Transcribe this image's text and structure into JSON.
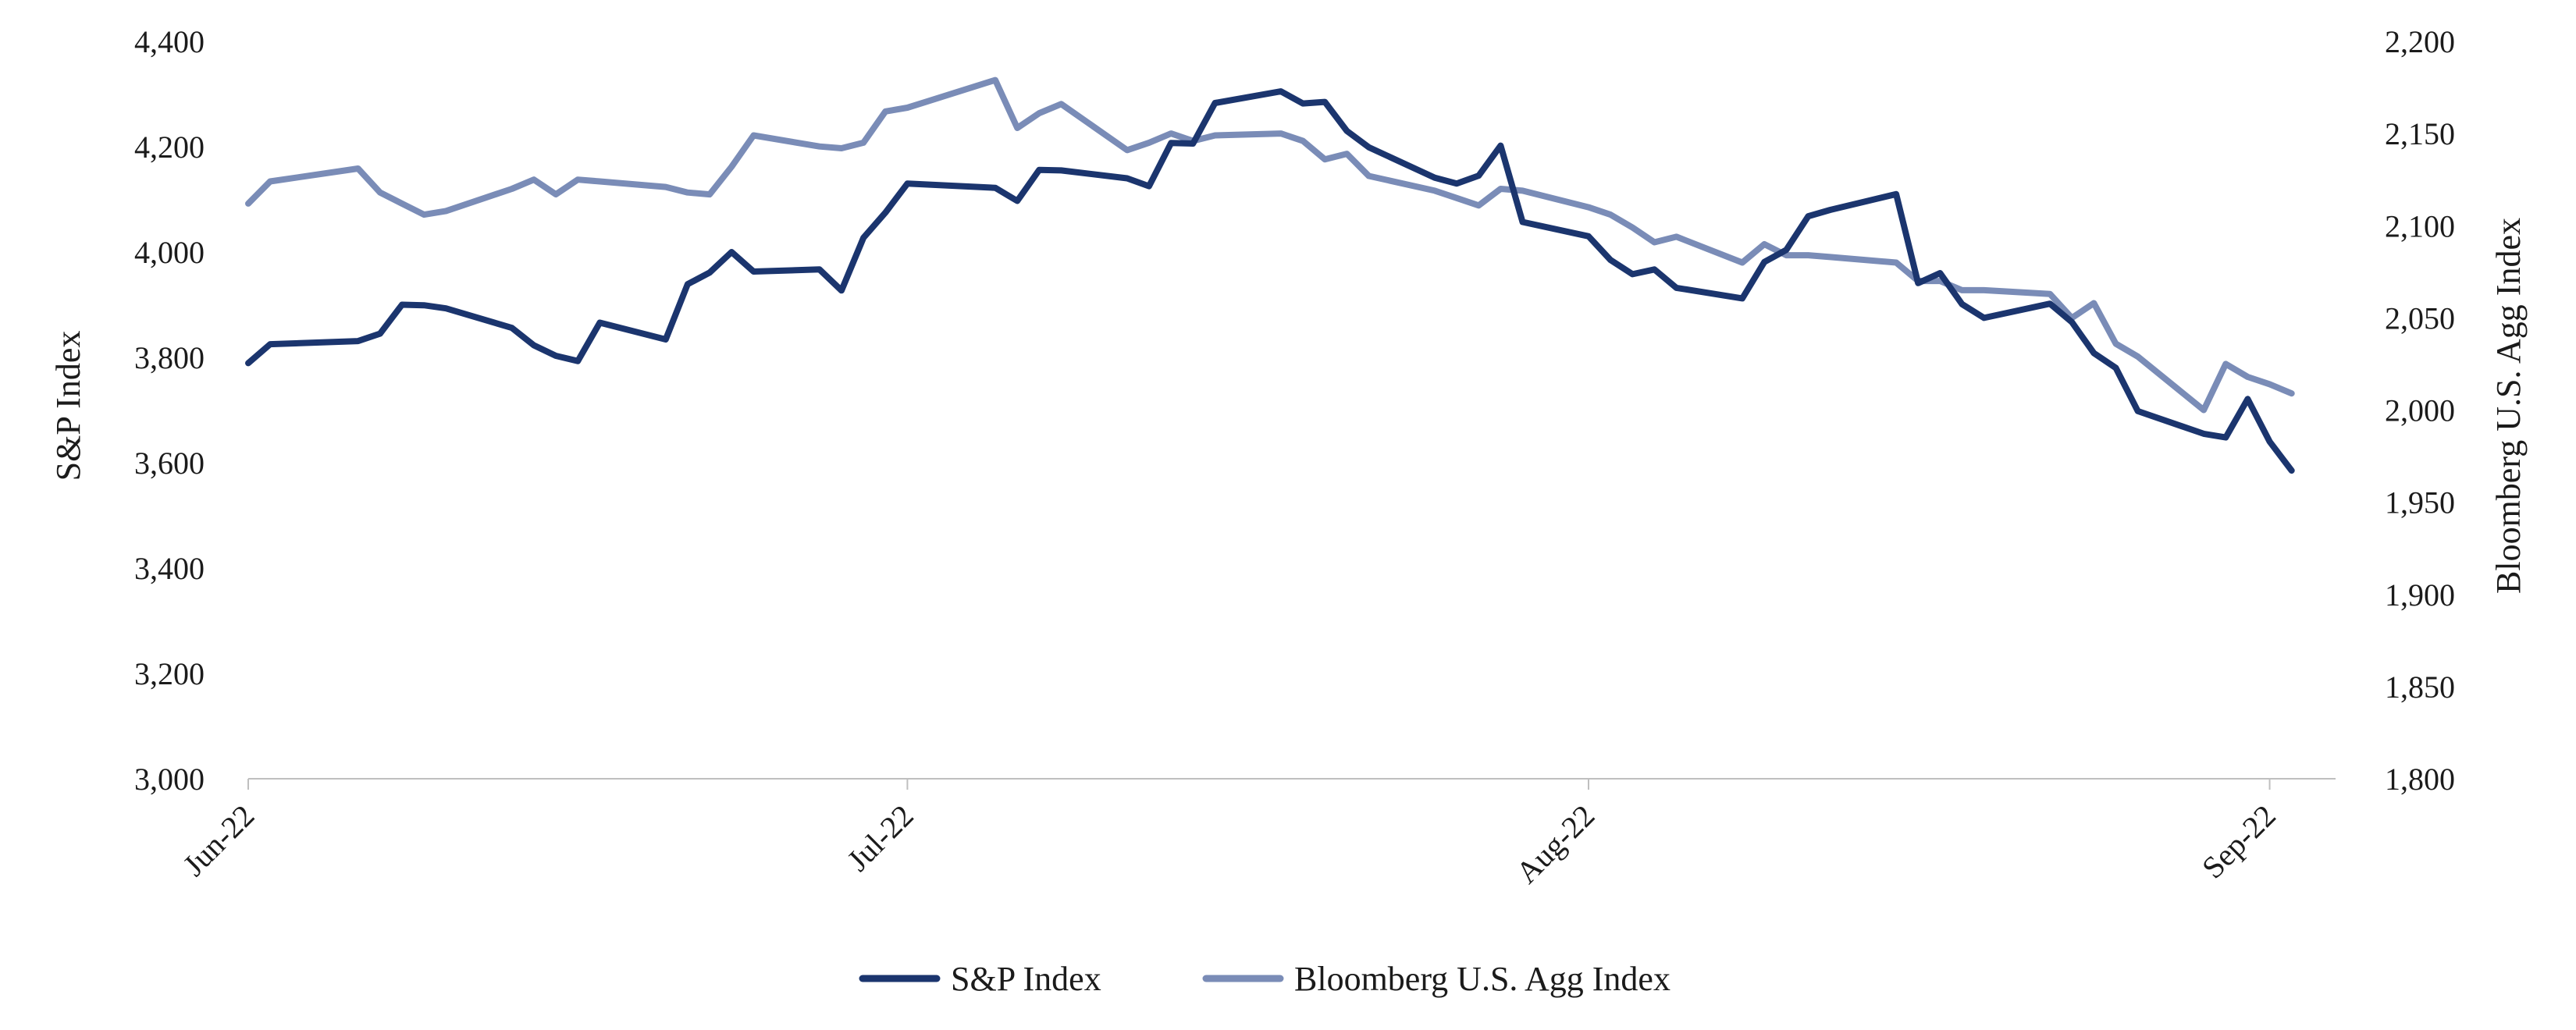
{
  "chart_data": {
    "type": "line",
    "title": "",
    "xlabel": "",
    "ylabel_left": "S&P Index",
    "ylabel_right": "Bloomberg U.S. Agg Index",
    "x_ticks": [
      "Jun-22",
      "Jul-22",
      "Aug-22",
      "Sep-22"
    ],
    "x_tick_positions": [
      0,
      30,
      61,
      92
    ],
    "xlim": [
      0,
      95
    ],
    "ylim_left": [
      3000,
      4400
    ],
    "ylim_right": [
      1800,
      2200
    ],
    "yticks_left": [
      "3,000",
      "3,200",
      "3,400",
      "3,600",
      "3,800",
      "4,000",
      "4,200",
      "4,400"
    ],
    "yticks_right": [
      "1,800",
      "1,850",
      "1,900",
      "1,950",
      "2,000",
      "2,050",
      "2,100",
      "2,150",
      "2,200"
    ],
    "grid": false,
    "legend_position": "bottom-center",
    "series": [
      {
        "name": "S&P Index",
        "axis": "left",
        "color": "#1b356e",
        "x": [
          0,
          1,
          5,
          6,
          7,
          8,
          9,
          12,
          13,
          14,
          15,
          16,
          19,
          20,
          21,
          22,
          23,
          26,
          27,
          28,
          29,
          30,
          34,
          35,
          36,
          37,
          40,
          41,
          42,
          43,
          44,
          47,
          48,
          49,
          50,
          51,
          54,
          55,
          56,
          57,
          58,
          61,
          62,
          63,
          64,
          65,
          68,
          69,
          70,
          71,
          72,
          75,
          76,
          77,
          78,
          79,
          82,
          83,
          84,
          85,
          86,
          89,
          90,
          91,
          92,
          93
        ],
        "values": [
          3789,
          3825,
          3831,
          3845,
          3900,
          3899,
          3893,
          3856,
          3823,
          3803,
          3793,
          3866,
          3834,
          3939,
          3961,
          4000,
          3963,
          3967,
          3927,
          4027,
          4075,
          4130,
          4122,
          4097,
          4156,
          4155,
          4140,
          4125,
          4207,
          4206,
          4283,
          4305,
          4282,
          4285,
          4230,
          4199,
          4141,
          4130,
          4145,
          4202,
          4057,
          4030,
          3985,
          3958,
          3967,
          3932,
          3912,
          3981,
          4004,
          4068,
          4080,
          4110,
          3941,
          3960,
          3901,
          3875,
          3902,
          3867,
          3808,
          3780,
          3698,
          3655,
          3648,
          3721,
          3640,
          3585
        ]
      },
      {
        "name": "Bloomberg U.S. Agg Index",
        "axis": "right",
        "color": "#7a8cb7",
        "x": [
          0,
          1,
          5,
          6,
          7,
          8,
          9,
          12,
          13,
          14,
          15,
          16,
          19,
          20,
          21,
          22,
          23,
          26,
          27,
          28,
          29,
          30,
          34,
          35,
          36,
          37,
          40,
          41,
          42,
          43,
          44,
          47,
          48,
          49,
          50,
          51,
          54,
          55,
          56,
          57,
          58,
          61,
          62,
          63,
          64,
          65,
          68,
          69,
          70,
          71,
          72,
          75,
          76,
          77,
          78,
          79,
          82,
          83,
          84,
          85,
          86,
          89,
          90,
          91,
          92,
          93
        ],
        "values": [
          2112,
          2124,
          2131,
          2118,
          2112,
          2106,
          2108,
          2120,
          2125,
          2117,
          2125,
          2124,
          2121,
          2118,
          2117,
          2132,
          2149,
          2143,
          2142,
          2145,
          2162,
          2164,
          2179,
          2153,
          2161,
          2166,
          2141,
          2145,
          2150,
          2146,
          2149,
          2150,
          2146,
          2136,
          2139,
          2127,
          2119,
          2115,
          2111,
          2120,
          2119,
          2110,
          2106,
          2099,
          2091,
          2094,
          2080,
          2090,
          2084,
          2084,
          2083,
          2080,
          2070,
          2070,
          2065,
          2065,
          2063,
          2050,
          2058,
          2036,
          2029,
          2000,
          2025,
          2018,
          2014,
          2009
        ]
      }
    ]
  }
}
